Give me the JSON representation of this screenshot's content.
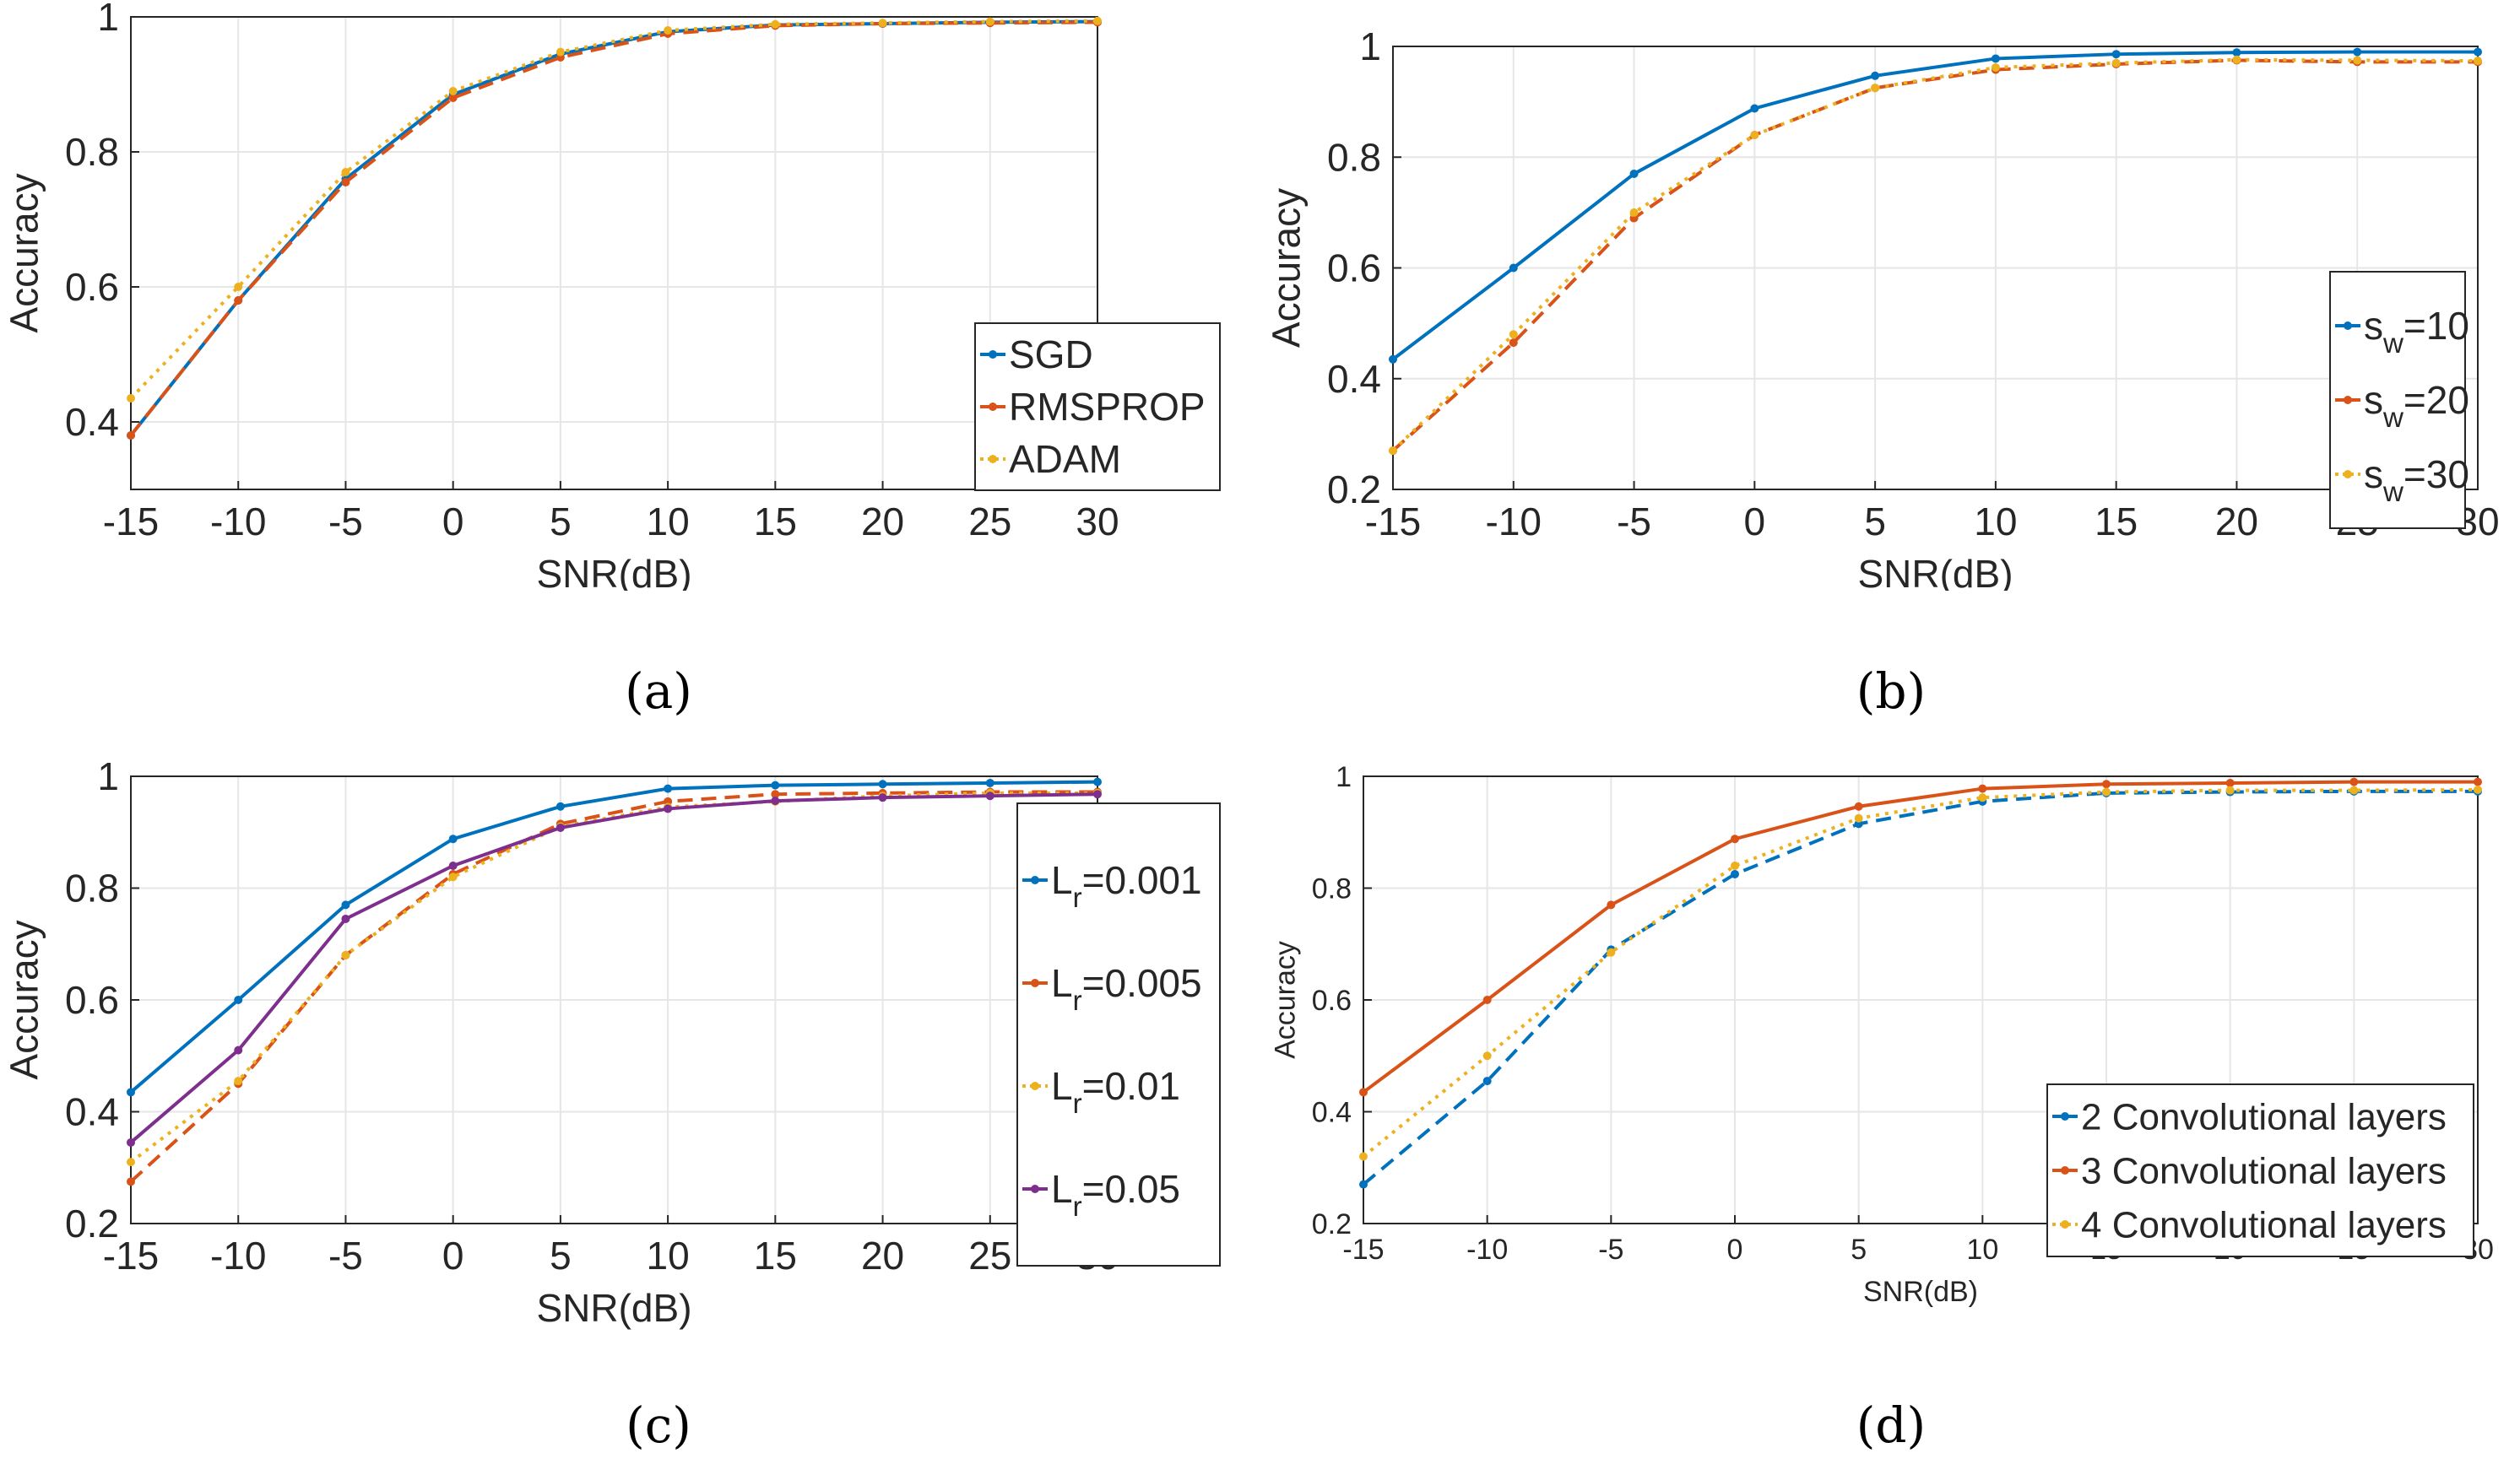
{
  "figure": {
    "captions": [
      "(a)",
      "(b)",
      "(c)",
      "(d)"
    ]
  },
  "chart_data": [
    {
      "type": "line",
      "panel": "a",
      "title": "",
      "xlabel": "SNR(dB)",
      "ylabel": "Accuracy",
      "x": [
        -15,
        -10,
        -5,
        0,
        5,
        10,
        15,
        20,
        25,
        30
      ],
      "xlim": [
        -15,
        30
      ],
      "ylim": [
        0.3,
        1.0
      ],
      "xticks": [
        "-15",
        "-10",
        "-5",
        "0",
        "5",
        "10",
        "15",
        "20",
        "25",
        "30"
      ],
      "yticks": [
        0.4,
        0.6,
        0.8,
        1
      ],
      "ytick_labels": [
        "0.4",
        "0.6",
        "0.8",
        "1"
      ],
      "grid": true,
      "legend_position": "bottom-right",
      "series": [
        {
          "name": "SGD",
          "color": "#0072BD",
          "dash": "solid",
          "values": [
            0.38,
            0.58,
            0.76,
            0.885,
            0.945,
            0.978,
            0.988,
            0.99,
            0.992,
            0.993
          ]
        },
        {
          "name": "RMSPROP",
          "color": "#D95319",
          "dash": "dashed",
          "values": [
            0.38,
            0.58,
            0.755,
            0.88,
            0.94,
            0.975,
            0.987,
            0.99,
            0.991,
            0.992
          ]
        },
        {
          "name": "ADAM",
          "color": "#EDB120",
          "dash": "dotted",
          "values": [
            0.435,
            0.6,
            0.77,
            0.89,
            0.948,
            0.98,
            0.989,
            0.991,
            0.993,
            0.994
          ]
        }
      ]
    },
    {
      "type": "line",
      "panel": "b",
      "title": "",
      "xlabel": "SNR(dB)",
      "ylabel": "Accuracy",
      "x": [
        -15,
        -10,
        -5,
        0,
        5,
        10,
        15,
        20,
        25,
        30
      ],
      "xlim": [
        -15,
        30
      ],
      "ylim": [
        0.2,
        1.0
      ],
      "xticks": [
        "-15",
        "-10",
        "-5",
        "0",
        "5",
        "10",
        "15",
        "20",
        "25",
        "30"
      ],
      "yticks": [
        0.2,
        0.4,
        0.6,
        0.8,
        1
      ],
      "ytick_labels": [
        "0.2",
        "0.4",
        "0.6",
        "0.8",
        "1"
      ],
      "grid": true,
      "legend_position": "right",
      "series": [
        {
          "name": "s_w=10",
          "label_base": "s",
          "label_sub": "w",
          "label_tail": "=10",
          "color": "#0072BD",
          "dash": "solid",
          "values": [
            0.435,
            0.6,
            0.77,
            0.888,
            0.947,
            0.978,
            0.986,
            0.989,
            0.99,
            0.99
          ]
        },
        {
          "name": "s_w=20",
          "label_base": "s",
          "label_sub": "w",
          "label_tail": "=20",
          "color": "#D95319",
          "dash": "dashed",
          "values": [
            0.27,
            0.465,
            0.69,
            0.84,
            0.925,
            0.958,
            0.968,
            0.975,
            0.972,
            0.972
          ]
        },
        {
          "name": "s_w=30",
          "label_base": "s",
          "label_sub": "w",
          "label_tail": "=30",
          "color": "#EDB120",
          "dash": "dotted",
          "values": [
            0.27,
            0.48,
            0.7,
            0.84,
            0.925,
            0.962,
            0.97,
            0.976,
            0.975,
            0.974
          ]
        }
      ]
    },
    {
      "type": "line",
      "panel": "c",
      "title": "",
      "xlabel": "SNR(dB)",
      "ylabel": "Accuracy",
      "x": [
        -15,
        -10,
        -5,
        0,
        5,
        10,
        15,
        20,
        25,
        30
      ],
      "xlim": [
        -15,
        30
      ],
      "ylim": [
        0.2,
        1.0
      ],
      "xticks": [
        "-15",
        "-10",
        "-5",
        "0",
        "5",
        "10",
        "15",
        "20",
        "25",
        "30"
      ],
      "yticks": [
        0.2,
        0.4,
        0.6,
        0.8,
        1
      ],
      "ytick_labels": [
        "0.2",
        "0.4",
        "0.6",
        "0.8",
        "1"
      ],
      "grid": true,
      "legend_position": "right",
      "series": [
        {
          "name": "L_r=0.001",
          "label_base": "L",
          "label_sub": "r",
          "label_tail": "=0.001",
          "color": "#0072BD",
          "dash": "solid",
          "values": [
            0.435,
            0.6,
            0.77,
            0.888,
            0.946,
            0.978,
            0.984,
            0.986,
            0.988,
            0.99
          ]
        },
        {
          "name": "L_r=0.005",
          "label_base": "L",
          "label_sub": "r",
          "label_tail": "=0.005",
          "color": "#D95319",
          "dash": "dashed",
          "values": [
            0.275,
            0.45,
            0.68,
            0.825,
            0.915,
            0.955,
            0.968,
            0.97,
            0.972,
            0.972
          ]
        },
        {
          "name": "L_r=0.01",
          "label_base": "L",
          "label_sub": "r",
          "label_tail": "=0.01",
          "color": "#EDB120",
          "dash": "dotted",
          "values": [
            0.31,
            0.455,
            0.68,
            0.82,
            0.91,
            0.945,
            0.955,
            0.965,
            0.97,
            0.97
          ]
        },
        {
          "name": "L_r=0.05",
          "label_base": "L",
          "label_sub": "r",
          "label_tail": "=0.05",
          "color": "#7E2F8E",
          "dash": "solid",
          "values": [
            0.345,
            0.51,
            0.745,
            0.84,
            0.908,
            0.942,
            0.956,
            0.962,
            0.965,
            0.968
          ]
        }
      ]
    },
    {
      "type": "line",
      "panel": "d",
      "title": "",
      "xlabel": "SNR(dB)",
      "ylabel": "Accuracy",
      "x": [
        -15,
        -10,
        -5,
        0,
        5,
        10,
        15,
        20,
        25,
        30
      ],
      "xlim": [
        -15,
        30
      ],
      "ylim": [
        0.2,
        1.0
      ],
      "xticks": [
        "-15",
        "-10",
        "-5",
        "0",
        "5",
        "10",
        "15",
        "20",
        "25",
        "30"
      ],
      "yticks": [
        0.2,
        0.4,
        0.6,
        0.8,
        1
      ],
      "ytick_labels": [
        "0.2",
        "0.4",
        "0.6",
        "0.8",
        "1"
      ],
      "grid": true,
      "legend_position": "bottom-right",
      "series": [
        {
          "name": "2 Convolutional layers",
          "color": "#0072BD",
          "dash": "dashed",
          "values": [
            0.27,
            0.455,
            0.69,
            0.825,
            0.915,
            0.955,
            0.97,
            0.972,
            0.973,
            0.973
          ]
        },
        {
          "name": "3 Convolutional layers",
          "color": "#D95319",
          "dash": "solid",
          "values": [
            0.435,
            0.6,
            0.77,
            0.888,
            0.946,
            0.978,
            0.986,
            0.988,
            0.99,
            0.99
          ]
        },
        {
          "name": "4 Convolutional layers",
          "color": "#EDB120",
          "dash": "dotted",
          "values": [
            0.32,
            0.5,
            0.685,
            0.84,
            0.925,
            0.962,
            0.972,
            0.975,
            0.975,
            0.976
          ]
        }
      ]
    }
  ]
}
